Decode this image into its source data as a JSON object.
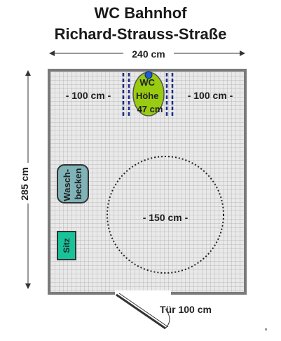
{
  "title": {
    "line1": "WC Bahnhof",
    "line2": "Richard-Strauss-Straße"
  },
  "plan": {
    "width_dim": "240 cm",
    "height_dim": "285 cm",
    "left_clearance": "- 100 cm -",
    "right_clearance": "- 100 cm -",
    "turning_circle": "- 150 cm -",
    "door_label": "Tür 100 cm",
    "wc_label": [
      "WC",
      "Höhe",
      "47 cm"
    ],
    "sink_label": [
      "Wasch-",
      "becken"
    ],
    "seat_label": "Sitz"
  },
  "colors": {
    "floor_grid": "#b9b9b9",
    "floor_bg": "#e9e9e9",
    "wall": "#7a7a7a",
    "wc_fill": "#99cc11",
    "wc_button": "#1e5fd0",
    "sink_fill": "#7fb3b8",
    "seat_fill": "#18c39a",
    "clearance_marks": "#1a2a8a"
  }
}
